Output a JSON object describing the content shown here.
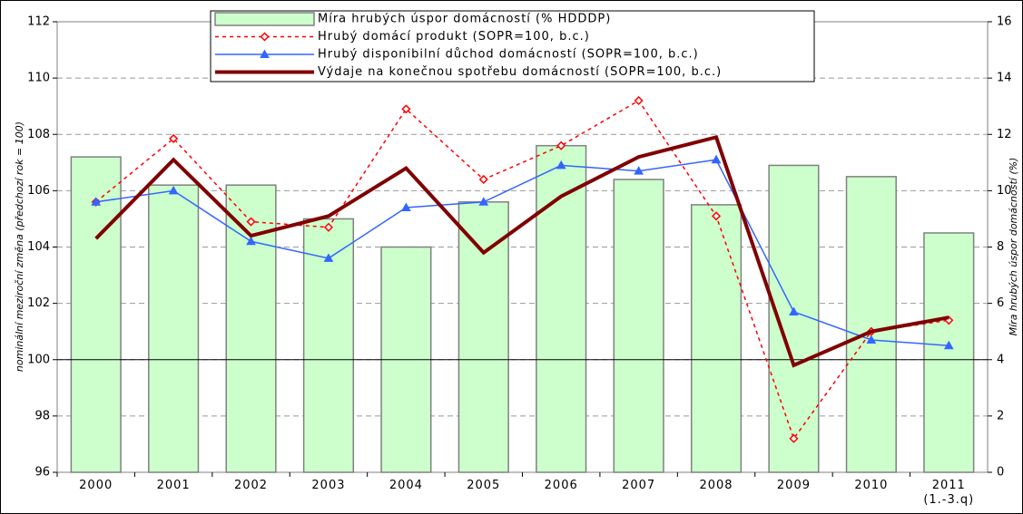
{
  "chart_data": {
    "type": "combo",
    "categories": [
      "2000",
      "2001",
      "2002",
      "2003",
      "2004",
      "2005",
      "2006",
      "2007",
      "2008",
      "2009",
      "2010",
      "2011\n(1.-3.q)"
    ],
    "ylabel": "nominální meziroční změna (předchozí rok = 100)",
    "y2label": "Míra hrubých úspor domácností (%)",
    "ylim": [
      96,
      112
    ],
    "yticks": [
      96,
      98,
      100,
      102,
      104,
      106,
      108,
      110,
      112
    ],
    "y2lim": [
      0,
      16
    ],
    "y2ticks": [
      0,
      2,
      4,
      6,
      8,
      10,
      12,
      14,
      16
    ],
    "grid": true,
    "legend": "top",
    "series": [
      {
        "name": "Míra hrubých úspor domácností (% HDDDP)",
        "type": "bar",
        "axis": "y2",
        "color": "#ccffcc",
        "values": [
          11.2,
          10.2,
          10.2,
          9.0,
          8.0,
          9.6,
          11.6,
          10.4,
          9.5,
          10.9,
          10.5,
          8.5
        ]
      },
      {
        "name": "Hrubý domácí produkt (SOPR=100, b.c.)",
        "type": "line",
        "color": "#ff0000",
        "dashed": true,
        "marker": "diamond",
        "values": [
          105.6,
          107.85,
          104.9,
          104.7,
          108.9,
          106.4,
          107.6,
          109.2,
          105.1,
          97.2,
          101.0,
          101.4
        ]
      },
      {
        "name": "Hrubý disponibilní důchod domácností (SOPR=100, b.c.)",
        "type": "line",
        "color": "#3366ff",
        "marker": "triangle",
        "values": [
          105.6,
          106.0,
          104.2,
          103.6,
          105.4,
          105.6,
          106.9,
          106.7,
          107.1,
          101.7,
          100.7,
          100.5
        ]
      },
      {
        "name": "Výdaje na konečnou spotřebu domácností (SOPR=100, b.c.)",
        "type": "line",
        "color": "#800000",
        "width": 4,
        "values": [
          104.3,
          107.1,
          104.4,
          105.1,
          106.8,
          103.8,
          105.8,
          107.2,
          107.9,
          99.8,
          101.0,
          101.5
        ]
      }
    ]
  }
}
